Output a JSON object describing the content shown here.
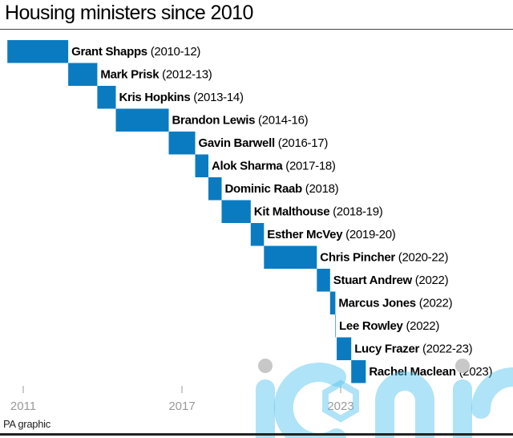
{
  "chart_data": {
    "type": "bar",
    "subtype": "gantt-timeline",
    "title": "Housing ministers since 2010",
    "source": "PA graphic",
    "xlabel": "",
    "ylabel": "",
    "xlim": [
      2010.0,
      2024.0
    ],
    "x_ticks": [
      2011,
      2017,
      2023
    ],
    "grid": false,
    "bar_color": "#0a7bc1",
    "series": [
      {
        "name": "Grant Shapps",
        "period": "(2010-12)",
        "start": 2010.4,
        "end": 2012.7
      },
      {
        "name": "Mark Prisk",
        "period": "(2012-13)",
        "start": 2012.7,
        "end": 2013.8
      },
      {
        "name": "Kris Hopkins",
        "period": "(2013-14)",
        "start": 2013.8,
        "end": 2014.5
      },
      {
        "name": "Brandon Lewis",
        "period": "(2014-16)",
        "start": 2014.5,
        "end": 2016.5
      },
      {
        "name": "Gavin Barwell",
        "period": "(2016-17)",
        "start": 2016.5,
        "end": 2017.5
      },
      {
        "name": "Alok Sharma",
        "period": "(2017-18)",
        "start": 2017.5,
        "end": 2018.0
      },
      {
        "name": "Dominic Raab",
        "period": "(2018)",
        "start": 2018.0,
        "end": 2018.5
      },
      {
        "name": "Kit Malthouse",
        "period": "(2018-19)",
        "start": 2018.5,
        "end": 2019.6
      },
      {
        "name": "Esther McVey",
        "period": "(2019-20)",
        "start": 2019.6,
        "end": 2020.1
      },
      {
        "name": "Chris Pincher",
        "period": "(2020-22)",
        "start": 2020.1,
        "end": 2022.1
      },
      {
        "name": "Stuart Andrew",
        "period": "(2022)",
        "start": 2022.1,
        "end": 2022.6
      },
      {
        "name": "Marcus Jones",
        "period": "(2022)",
        "start": 2022.6,
        "end": 2022.8
      },
      {
        "name": "Lee Rowley",
        "period": "(2022)",
        "start": 2022.8,
        "end": 2022.82
      },
      {
        "name": "Lucy Frazer",
        "period": "(2022-23)",
        "start": 2022.85,
        "end": 2023.4
      },
      {
        "name": "Rachel Maclean",
        "period": "(2023)",
        "start": 2023.4,
        "end": 2023.95
      }
    ]
  },
  "watermark": {
    "text": "iconic"
  }
}
